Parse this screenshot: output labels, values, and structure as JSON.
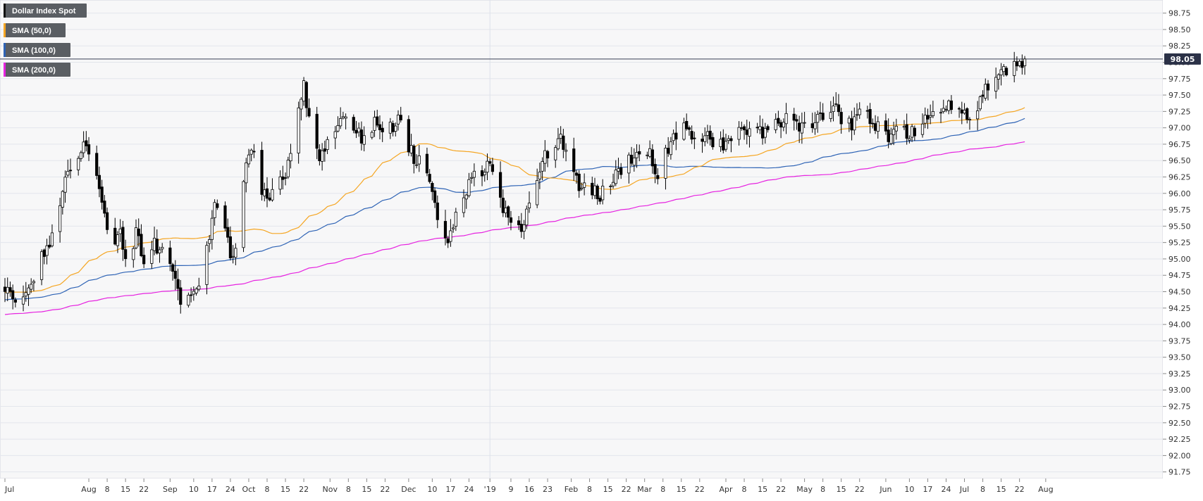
{
  "chart_data": {
    "type": "candlestick",
    "instrument": "Dollar Index Spot",
    "ylim": [
      91.65,
      98.95
    ],
    "y_ticks": [
      "91.75",
      "92.00",
      "92.25",
      "92.50",
      "92.75",
      "93.00",
      "93.25",
      "93.50",
      "93.75",
      "94.00",
      "94.25",
      "94.50",
      "94.75",
      "95.00",
      "95.25",
      "95.50",
      "95.75",
      "96.00",
      "96.25",
      "96.50",
      "96.75",
      "97.00",
      "97.25",
      "97.50",
      "97.75",
      "98.00",
      "98.25",
      "98.50",
      "98.75"
    ],
    "x_ticks": [
      {
        "label": "Jul",
        "day": 0
      },
      {
        "label": "Aug",
        "day": 32
      },
      {
        "label": "8",
        "day": 39
      },
      {
        "label": "15",
        "day": 46
      },
      {
        "label": "22",
        "day": 53
      },
      {
        "label": "Sep",
        "day": 63
      },
      {
        "label": "10",
        "day": 72
      },
      {
        "label": "17",
        "day": 79
      },
      {
        "label": "24",
        "day": 86
      },
      {
        "label": "Oct",
        "day": 93
      },
      {
        "label": "8",
        "day": 100
      },
      {
        "label": "15",
        "day": 107
      },
      {
        "label": "22",
        "day": 114
      },
      {
        "label": "Nov",
        "day": 124
      },
      {
        "label": "8",
        "day": 131
      },
      {
        "label": "15",
        "day": 138
      },
      {
        "label": "22",
        "day": 145
      },
      {
        "label": "Dec",
        "day": 154
      },
      {
        "label": "10",
        "day": 163
      },
      {
        "label": "17",
        "day": 170
      },
      {
        "label": "24",
        "day": 177
      },
      {
        "label": "'19",
        "day": 185
      },
      {
        "label": "9",
        "day": 193
      },
      {
        "label": "16",
        "day": 200
      },
      {
        "label": "23",
        "day": 207
      },
      {
        "label": "Feb",
        "day": 216
      },
      {
        "label": "8",
        "day": 223
      },
      {
        "label": "15",
        "day": 230
      },
      {
        "label": "22",
        "day": 237
      },
      {
        "label": "Mar",
        "day": 244
      },
      {
        "label": "8",
        "day": 251
      },
      {
        "label": "15",
        "day": 258
      },
      {
        "label": "22",
        "day": 265
      },
      {
        "label": "Apr",
        "day": 275
      },
      {
        "label": "8",
        "day": 282
      },
      {
        "label": "15",
        "day": 289
      },
      {
        "label": "22",
        "day": 296
      },
      {
        "label": "May",
        "day": 305
      },
      {
        "label": "8",
        "day": 312
      },
      {
        "label": "15",
        "day": 319
      },
      {
        "label": "22",
        "day": 326
      },
      {
        "label": "Jun",
        "day": 336
      },
      {
        "label": "10",
        "day": 345
      },
      {
        "label": "17",
        "day": 352
      },
      {
        "label": "24",
        "day": 359
      },
      {
        "label": "Jul",
        "day": 366
      },
      {
        "label": "8",
        "day": 373
      },
      {
        "label": "15",
        "day": 380
      },
      {
        "label": "22",
        "day": 387
      },
      {
        "label": "Aug",
        "day": 397
      }
    ],
    "period_divider_day": 185,
    "last_price": 98.05,
    "last_price_label": "98.05",
    "legend": [
      {
        "label": "Dollar Index Spot",
        "color": "#111111"
      },
      {
        "label": "SMA (50,0)",
        "color": "#f5a623"
      },
      {
        "label": "SMA (100,0)",
        "color": "#2e63b5"
      },
      {
        "label": "SMA (200,0)",
        "color": "#e623e0"
      }
    ],
    "colors": {
      "up_body": "#ffffff",
      "down_body": "#000000",
      "wick": "#000000",
      "sma50": "#f5a623",
      "sma100": "#2e63b5",
      "sma200": "#e623e0",
      "grid": "#e3e6ec",
      "bg": "#f7f7f8"
    },
    "close_keyframes": [
      [
        -2,
        94.6
      ],
      [
        6,
        94.4
      ],
      [
        12,
        94.8
      ],
      [
        16,
        95.2
      ],
      [
        20,
        95.6
      ],
      [
        24,
        96.4
      ],
      [
        28,
        96.6
      ],
      [
        31,
        96.75
      ],
      [
        34,
        96.65
      ],
      [
        37,
        95.8
      ],
      [
        40,
        95.1
      ],
      [
        44,
        95.4
      ],
      [
        47,
        94.9
      ],
      [
        50,
        95.4
      ],
      [
        53,
        95.0
      ],
      [
        56,
        95.25
      ],
      [
        60,
        95.05
      ],
      [
        63,
        94.85
      ],
      [
        66,
        94.45
      ],
      [
        69,
        94.2
      ],
      [
        71,
        94.5
      ],
      [
        74,
        94.7
      ],
      [
        77,
        95.1
      ],
      [
        80,
        95.9
      ],
      [
        83,
        95.6
      ],
      [
        86,
        95.1
      ],
      [
        88,
        95.15
      ],
      [
        91,
        96.2
      ],
      [
        93,
        96.6
      ],
      [
        95,
        96.75
      ],
      [
        98,
        96.0
      ],
      [
        101,
        95.85
      ],
      [
        104,
        96.1
      ],
      [
        108,
        96.4
      ],
      [
        111,
        97.15
      ],
      [
        114,
        97.65
      ],
      [
        117,
        97.0
      ],
      [
        120,
        96.5
      ],
      [
        123,
        96.7
      ],
      [
        126,
        96.9
      ],
      [
        129,
        97.15
      ],
      [
        132,
        96.9
      ],
      [
        135,
        96.9
      ],
      [
        138,
        96.85
      ],
      [
        141,
        97.05
      ],
      [
        144,
        96.9
      ],
      [
        147,
        97.0
      ],
      [
        150,
        97.1
      ],
      [
        153,
        96.8
      ],
      [
        156,
        96.55
      ],
      [
        159,
        96.4
      ],
      [
        163,
        96.0
      ],
      [
        165,
        95.65
      ],
      [
        168,
        95.25
      ],
      [
        171,
        95.55
      ],
      [
        174,
        95.85
      ],
      [
        177,
        96.2
      ],
      [
        180,
        96.25
      ],
      [
        183,
        96.4
      ],
      [
        185,
        96.5
      ],
      [
        188,
        96.1
      ],
      [
        191,
        95.7
      ],
      [
        194,
        95.3
      ],
      [
        197,
        95.5
      ],
      [
        200,
        95.8
      ],
      [
        203,
        96.2
      ],
      [
        206,
        96.55
      ],
      [
        209,
        96.8
      ],
      [
        212,
        96.85
      ],
      [
        215,
        96.5
      ],
      [
        218,
        96.2
      ],
      [
        221,
        96.1
      ],
      [
        224,
        96.0
      ],
      [
        227,
        96.0
      ],
      [
        230,
        96.1
      ],
      [
        233,
        96.35
      ],
      [
        236,
        96.45
      ],
      [
        239,
        96.5
      ],
      [
        242,
        96.6
      ],
      [
        245,
        96.7
      ],
      [
        248,
        96.3
      ],
      [
        251,
        96.45
      ],
      [
        254,
        96.85
      ],
      [
        257,
        96.95
      ],
      [
        260,
        97.0
      ],
      [
        263,
        96.85
      ],
      [
        266,
        96.9
      ],
      [
        269,
        96.85
      ],
      [
        272,
        96.75
      ],
      [
        275,
        96.8
      ],
      [
        278,
        96.95
      ],
      [
        281,
        96.9
      ],
      [
        284,
        97.05
      ],
      [
        287,
        97.0
      ],
      [
        290,
        96.95
      ],
      [
        293,
        97.0
      ],
      [
        296,
        97.1
      ],
      [
        299,
        97.15
      ],
      [
        302,
        97.0
      ],
      [
        305,
        97.0
      ],
      [
        308,
        97.05
      ],
      [
        311,
        97.1
      ],
      [
        314,
        97.15
      ],
      [
        317,
        97.25
      ],
      [
        320,
        97.15
      ],
      [
        323,
        97.0
      ],
      [
        326,
        97.2
      ],
      [
        329,
        97.15
      ],
      [
        332,
        97.05
      ],
      [
        335,
        96.95
      ],
      [
        338,
        96.85
      ],
      [
        341,
        96.95
      ],
      [
        344,
        96.9
      ],
      [
        347,
        97.0
      ],
      [
        350,
        97.0
      ],
      [
        353,
        97.25
      ],
      [
        356,
        97.25
      ],
      [
        359,
        97.35
      ],
      [
        362,
        97.3
      ],
      [
        365,
        97.15
      ],
      [
        368,
        97.15
      ],
      [
        371,
        97.35
      ],
      [
        374,
        97.55
      ],
      [
        377,
        97.7
      ],
      [
        380,
        97.85
      ],
      [
        383,
        97.95
      ],
      [
        386,
        97.95
      ],
      [
        389,
        98.05
      ]
    ]
  }
}
